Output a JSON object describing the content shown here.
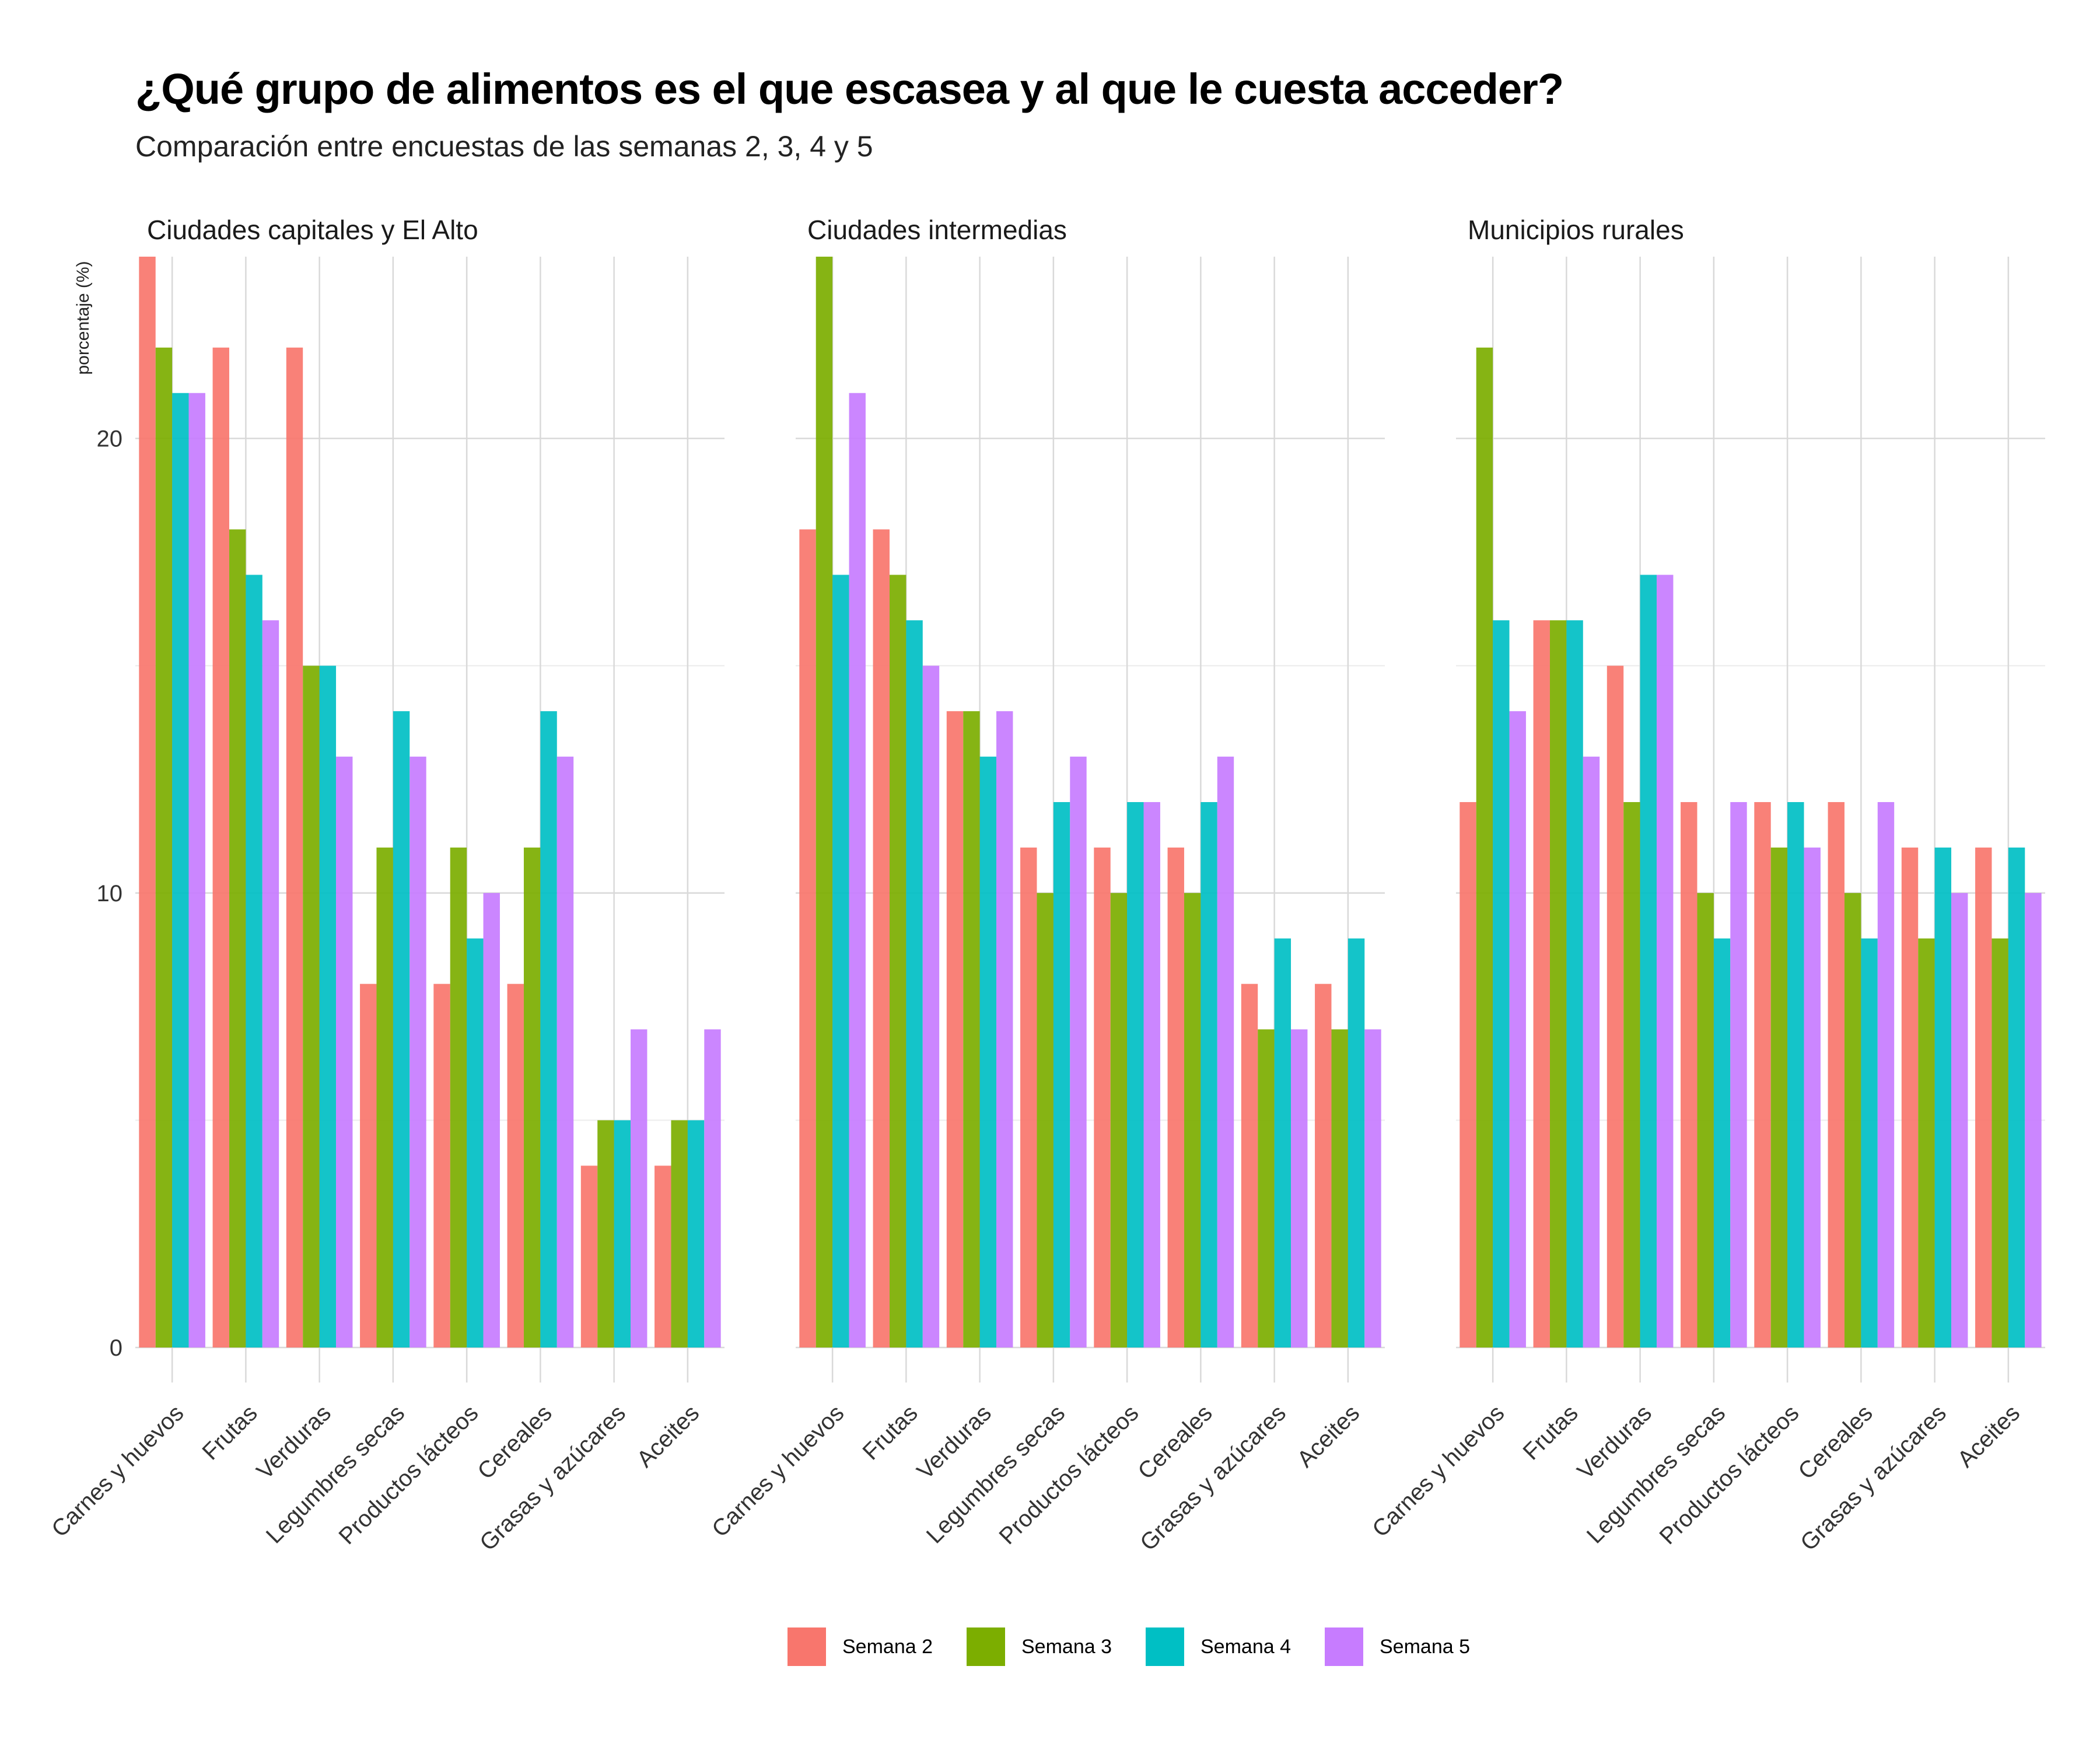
{
  "title": "¿Qué grupo de alimentos es el que escasea y al que le cuesta acceder?",
  "subtitle": "Comparación entre encuestas de las semanas 2, 3, 4 y 5",
  "chart_data": {
    "type": "bar",
    "ylabel": "porcentaje (%)",
    "xlabel": "",
    "ylim": [
      0,
      24
    ],
    "yticks": [
      0,
      10,
      20
    ],
    "grid": true,
    "legend_position": "bottom",
    "categories": [
      "Carnes y huevos",
      "Frutas",
      "Verduras",
      "Legumbres secas",
      "Productos lácteos",
      "Cereales",
      "Grasas y azúcares",
      "Aceites"
    ],
    "series_names": [
      "Semana 2",
      "Semana 3",
      "Semana 4",
      "Semana 5"
    ],
    "colors": [
      "#F8766D",
      "#7CAE00",
      "#00BFC4",
      "#C77CFF"
    ],
    "panels": [
      {
        "name": "Ciudades capitales y El Alto",
        "series": [
          {
            "name": "Semana 2",
            "values": [
              24,
              22,
              22,
              8,
              8,
              8,
              4,
              4
            ]
          },
          {
            "name": "Semana 3",
            "values": [
              22,
              18,
              15,
              11,
              11,
              11,
              5,
              5
            ]
          },
          {
            "name": "Semana 4",
            "values": [
              21,
              17,
              15,
              14,
              9,
              14,
              5,
              5
            ]
          },
          {
            "name": "Semana 5",
            "values": [
              21,
              16,
              13,
              13,
              10,
              13,
              7,
              7
            ]
          }
        ]
      },
      {
        "name": "Ciudades intermedias",
        "series": [
          {
            "name": "Semana 2",
            "values": [
              18,
              18,
              14,
              11,
              11,
              11,
              8,
              8
            ]
          },
          {
            "name": "Semana 3",
            "values": [
              24,
              17,
              14,
              10,
              10,
              10,
              7,
              7
            ]
          },
          {
            "name": "Semana 4",
            "values": [
              17,
              16,
              13,
              12,
              12,
              12,
              9,
              9
            ]
          },
          {
            "name": "Semana 5",
            "values": [
              21,
              15,
              14,
              13,
              12,
              13,
              7,
              7
            ]
          }
        ]
      },
      {
        "name": "Municipios rurales",
        "series": [
          {
            "name": "Semana 2",
            "values": [
              12,
              16,
              15,
              12,
              12,
              12,
              11,
              11
            ]
          },
          {
            "name": "Semana 3",
            "values": [
              22,
              16,
              12,
              10,
              11,
              10,
              9,
              9
            ]
          },
          {
            "name": "Semana 4",
            "values": [
              16,
              16,
              17,
              9,
              12,
              9,
              11,
              11
            ]
          },
          {
            "name": "Semana 5",
            "values": [
              14,
              13,
              17,
              12,
              11,
              12,
              10,
              10
            ]
          }
        ]
      }
    ]
  }
}
